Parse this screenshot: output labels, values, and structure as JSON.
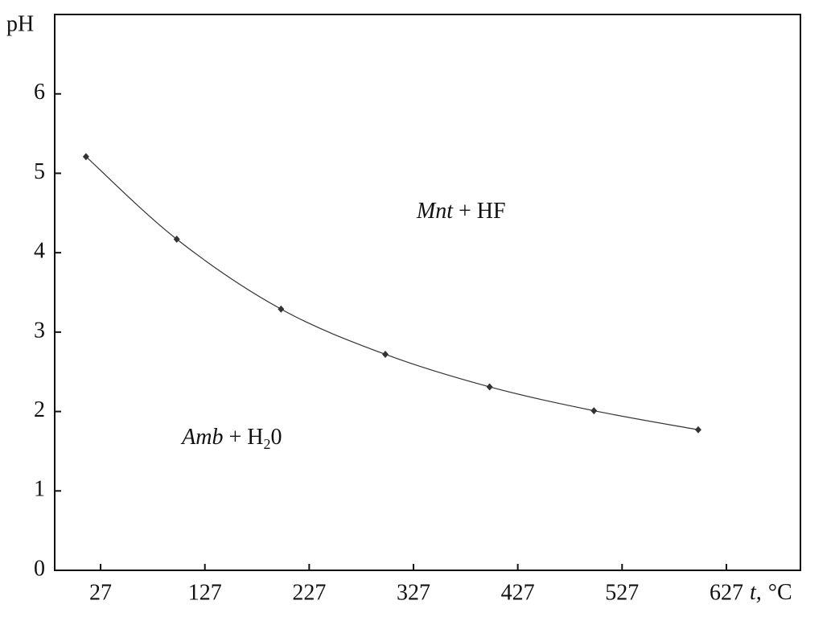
{
  "chart_data": {
    "type": "line",
    "y_label": "pH",
    "x_label": {
      "italic": "t,",
      "text": "°C"
    },
    "x": [
      13,
      100,
      200,
      300,
      400,
      500,
      600
    ],
    "series": [
      {
        "color": "#333333",
        "values": [
          5.21,
          4.17,
          3.29,
          2.72,
          2.31,
          2.01,
          1.77
        ]
      }
    ],
    "xlim": [
      -17,
      698
    ],
    "ylim": [
      0,
      7
    ],
    "xticks": [
      27,
      127,
      227,
      327,
      427,
      527,
      627
    ],
    "yticks": [
      0,
      1,
      2,
      3,
      4,
      5,
      6
    ],
    "annotations": [
      {
        "x": 330,
        "y": 4.5,
        "parts": [
          {
            "italic": "Mnt"
          },
          {
            "text": " + HF"
          }
        ]
      },
      {
        "x": 105,
        "y": 1.65,
        "parts": [
          {
            "italic": "Amb"
          },
          {
            "text": " + H"
          },
          {
            "sub": "2"
          },
          {
            "text": "0"
          }
        ]
      }
    ]
  }
}
